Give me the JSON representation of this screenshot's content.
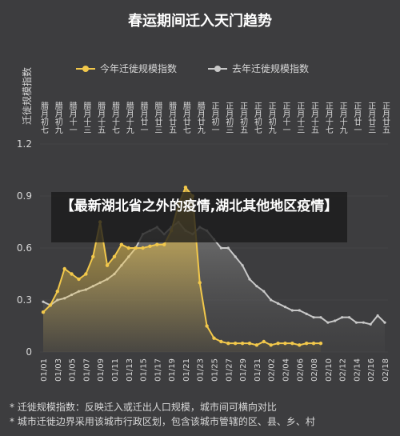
{
  "chart_data": {
    "type": "line",
    "title": "春运期间迁入天门趋势",
    "y_label": "迁徙规模指数",
    "categories": [
      "01/01",
      null,
      "01/03",
      null,
      "01/05",
      null,
      "01/07",
      null,
      "01/09",
      null,
      "01/11",
      null,
      "01/13",
      null,
      "01/15",
      null,
      "01/17",
      null,
      "01/19",
      null,
      "01/21",
      null,
      "01/23",
      null,
      "01/25",
      null,
      "01/27",
      null,
      "01/29",
      null,
      "01/31",
      null,
      "02/02",
      null,
      "02/04",
      null,
      "02/06",
      null,
      "02/08",
      null,
      "02/10",
      null,
      "02/12",
      null,
      "02/14",
      null,
      "02/16",
      null,
      "02/18"
    ],
    "lunar_labels": [
      "腊月初七",
      null,
      "腊月初九",
      null,
      "腊月十一",
      null,
      "腊月十三",
      null,
      "腊月十五",
      null,
      "腊月十七",
      null,
      "腊月十九",
      null,
      "腊月廿一",
      null,
      "腊月廿三",
      null,
      "腊月廿五",
      null,
      "腊月廿七",
      null,
      "腊月廿九",
      null,
      "正月初一",
      null,
      "正月初三",
      null,
      "正月初五",
      null,
      "正月初七",
      null,
      "正月初九",
      null,
      "正月十一",
      null,
      "正月十三",
      null,
      "正月十五",
      null,
      "正月十七",
      null,
      "正月十九",
      null,
      "正月廿一",
      null,
      "正月廿三",
      null,
      "正月廿五"
    ],
    "series": [
      {
        "name": "今年迁徙规模指数",
        "color": "#f2c84b",
        "values": [
          0.23,
          0.27,
          0.35,
          0.48,
          0.45,
          0.42,
          0.45,
          0.55,
          0.75,
          0.5,
          0.55,
          0.62,
          0.6,
          0.6,
          0.6,
          0.61,
          0.62,
          0.62,
          0.7,
          0.85,
          0.95,
          0.9,
          0.4,
          0.15,
          0.08,
          0.06,
          0.05,
          0.05,
          0.05,
          0.05,
          0.04,
          0.06,
          0.04,
          0.05,
          0.05,
          0.05,
          0.04,
          0.05,
          0.05,
          0.05,
          null,
          null,
          null,
          null,
          null,
          null,
          null,
          null,
          null
        ]
      },
      {
        "name": "去年迁徙规模指数",
        "color": "#c8c8c8",
        "values": [
          0.29,
          0.27,
          0.3,
          0.31,
          0.33,
          0.35,
          0.36,
          0.38,
          0.4,
          0.42,
          0.45,
          0.5,
          0.55,
          0.6,
          0.68,
          0.7,
          0.72,
          0.68,
          0.72,
          0.75,
          0.7,
          0.68,
          0.72,
          0.7,
          0.65,
          0.6,
          0.6,
          0.55,
          0.5,
          0.42,
          0.38,
          0.35,
          0.3,
          0.28,
          0.26,
          0.24,
          0.24,
          0.22,
          0.2,
          0.2,
          0.17,
          0.18,
          0.2,
          0.2,
          0.17,
          0.17,
          0.16,
          0.21,
          0.17
        ]
      }
    ],
    "ylim": [
      0,
      1.2
    ],
    "yticks": [
      0,
      0.3,
      0.6,
      0.9,
      1.2
    ],
    "legend": "top",
    "notes": [
      "* 迁徙规模指数：反映迁入或迁出人口规模，城市间可横向对比",
      "* 城市迁徙边界采用该城市行政区划，包含该城市管辖的区、县、乡、村"
    ]
  },
  "overlay": {
    "text": "【最新湖北省之外的疫情,湖北其他地区疫情】"
  }
}
